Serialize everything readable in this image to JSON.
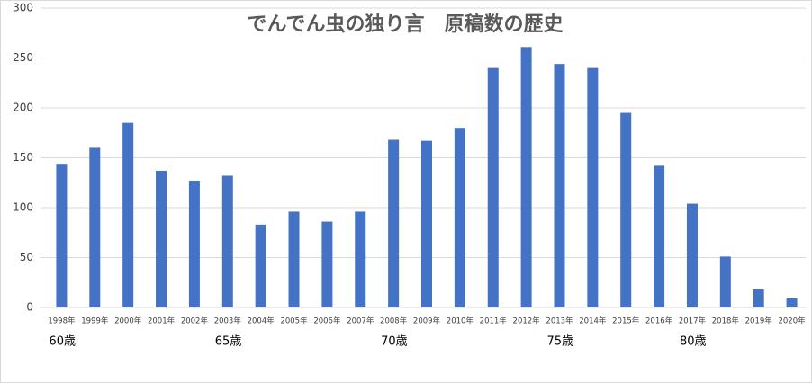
{
  "chart_data": {
    "type": "bar",
    "title": "でんでん虫の独り言　原稿数の歴史",
    "categories": [
      "1998年",
      "1999年",
      "2000年",
      "2001年",
      "2002年",
      "2003年",
      "2004年",
      "2005年",
      "2006年",
      "2007年",
      "2008年",
      "2009年",
      "2010年",
      "2011年",
      "2012年",
      "2013年",
      "2014年",
      "2015年",
      "2016年",
      "2017年",
      "2018年",
      "2019年",
      "2020年"
    ],
    "values": [
      144,
      160,
      185,
      137,
      127,
      132,
      83,
      96,
      86,
      96,
      168,
      167,
      180,
      240,
      261,
      244,
      240,
      195,
      142,
      104,
      51,
      18,
      9
    ],
    "color": "#4472c4",
    "ylim": [
      0,
      300
    ],
    "yticks": [
      0,
      50,
      100,
      150,
      200,
      250,
      300
    ],
    "grid": true,
    "annotations": [
      {
        "text": "60歳",
        "category": "1998年"
      },
      {
        "text": "65歳",
        "category": "2003年"
      },
      {
        "text": "70歳",
        "category": "2008年"
      },
      {
        "text": "75歳",
        "category": "2013年"
      },
      {
        "text": "80歳",
        "category": "2017年"
      }
    ]
  }
}
